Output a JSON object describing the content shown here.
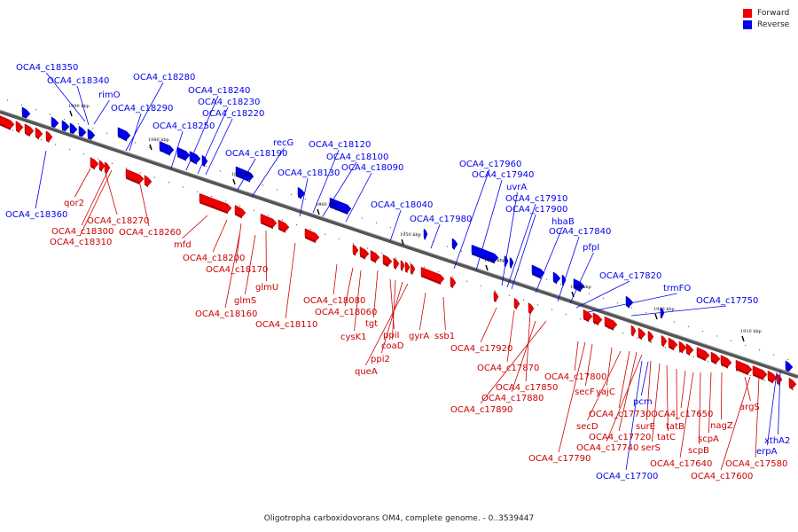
{
  "legend": {
    "forward_label": "Forward",
    "reverse_label": "Reverse",
    "forward_color": "#ee0000",
    "reverse_color": "#0000ee"
  },
  "caption": "Oligotropha carboxidovorans OM4, complete genome. - 0..3539447",
  "ticks": [
    "1990 kbp",
    "1980 kbp",
    "1970 kbp",
    "1960 kbp",
    "1950 kbp",
    "1940 kbp",
    "1930 kbp",
    "1920 kbp",
    "1910 kbp"
  ],
  "labels_reverse": [
    "OCA4_c18350",
    "OCA4_c18340",
    "rimO",
    "OCA4_c18280",
    "OCA4_c18290",
    "OCA4_c18240",
    "OCA4_c18230",
    "OCA4_c18220",
    "OCA4_c18250",
    "recG",
    "OCA4_c18190",
    "OCA4_c18120",
    "OCA4_c18100",
    "OCA4_c18090",
    "OCA4_c18130",
    "OCA4_c18040",
    "OCA4_c17980",
    "OCA4_c17960",
    "OCA4_c17940",
    "uvrA",
    "OCA4_c17910",
    "OCA4_c17900",
    "hbaB",
    "OCA4_c17840",
    "pfpI",
    "OCA4_c17820",
    "trmFO",
    "OCA4_c17750",
    "OCA4_c18360",
    "pcm",
    "OCA4_c17700",
    "xthA2",
    "erpA"
  ],
  "labels_forward": [
    "qor2",
    "OCA4_c18270",
    "OCA4_c18300",
    "OCA4_c18310",
    "OCA4_c18260",
    "mfd",
    "OCA4_c18200",
    "OCA4_c18170",
    "glmU",
    "glmS",
    "OCA4_c18160",
    "OCA4_c18110",
    "OCA4_c18080",
    "OCA4_c18060",
    "tgt",
    "cysK1",
    "ppiI",
    "coaD",
    "ppi2",
    "queA",
    "gyrA",
    "ssb1",
    "OCA4_c17920",
    "OCA4_c17870",
    "OCA4_c17850",
    "OCA4_c17880",
    "OCA4_c17890",
    "OCA4_c17800",
    "secF",
    "yajC",
    "OCA4_c17730",
    "secD",
    "OCA4_c17720",
    "OCA4_c17740",
    "OCA4_c17790",
    "surE",
    "serS",
    "tatC",
    "tatB",
    "OCA4_c17650",
    "nagZ",
    "scpA",
    "scpB",
    "OCA4_c17640",
    "argS",
    "OCA4_c17580",
    "OCA4_c17600"
  ]
}
